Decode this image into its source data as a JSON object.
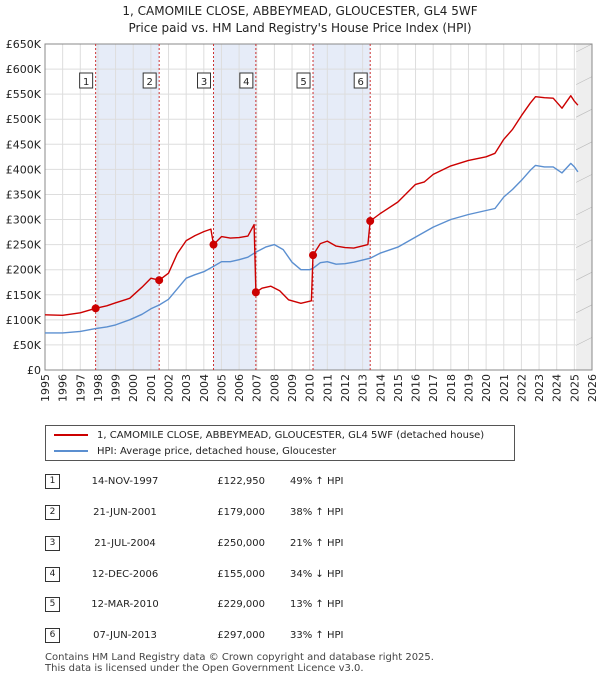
{
  "chart_data": {
    "type": "line",
    "title": "1, CAMOMILE CLOSE, ABBEYMEAD, GLOUCESTER, GL4 5WF",
    "subtitle": "Price paid vs. HM Land Registry's House Price Index (HPI)",
    "xlim": [
      1995,
      2026
    ],
    "ylim": [
      0,
      650000
    ],
    "x_ticks": [
      "1995",
      "1996",
      "1997",
      "1998",
      "1999",
      "2000",
      "2001",
      "2002",
      "2003",
      "2004",
      "2005",
      "2006",
      "2007",
      "2008",
      "2009",
      "2010",
      "2011",
      "2012",
      "2013",
      "2014",
      "2015",
      "2016",
      "2017",
      "2018",
      "2019",
      "2020",
      "2021",
      "2022",
      "2023",
      "2024",
      "2025",
      "2026"
    ],
    "y_ticks": [
      {
        "value": 0,
        "label": "£0"
      },
      {
        "value": 50000,
        "label": "£50K"
      },
      {
        "value": 100000,
        "label": "£100K"
      },
      {
        "value": 150000,
        "label": "£150K"
      },
      {
        "value": 200000,
        "label": "£200K"
      },
      {
        "value": 250000,
        "label": "£250K"
      },
      {
        "value": 300000,
        "label": "£300K"
      },
      {
        "value": 350000,
        "label": "£350K"
      },
      {
        "value": 400000,
        "label": "£400K"
      },
      {
        "value": 450000,
        "label": "£450K"
      },
      {
        "value": 500000,
        "label": "£500K"
      },
      {
        "value": 550000,
        "label": "£550K"
      },
      {
        "value": 600000,
        "label": "£600K"
      },
      {
        "value": 650000,
        "label": "£650K"
      }
    ],
    "grid": true,
    "future_from": 2025.1,
    "series": [
      {
        "name": "1, CAMOMILE CLOSE, ABBEYMEAD, GLOUCESTER, GL4 5WF (detached house)",
        "color": "#cc0000",
        "points": [
          [
            1995.0,
            110000
          ],
          [
            1996.0,
            109000
          ],
          [
            1997.0,
            114000
          ],
          [
            1997.87,
            122950
          ],
          [
            1998.5,
            128000
          ],
          [
            1999.0,
            134000
          ],
          [
            1999.8,
            143000
          ],
          [
            2000.5,
            165000
          ],
          [
            2001.0,
            183000
          ],
          [
            2001.47,
            179000
          ],
          [
            2002.0,
            193000
          ],
          [
            2002.5,
            232000
          ],
          [
            2003.0,
            258000
          ],
          [
            2003.5,
            268000
          ],
          [
            2004.0,
            276000
          ],
          [
            2004.4,
            281000
          ],
          [
            2004.55,
            250000
          ],
          [
            2005.0,
            266000
          ],
          [
            2005.5,
            263000
          ],
          [
            2006.0,
            264000
          ],
          [
            2006.5,
            267000
          ],
          [
            2006.85,
            290000
          ],
          [
            2006.95,
            155000
          ],
          [
            2007.3,
            163000
          ],
          [
            2007.8,
            167000
          ],
          [
            2008.3,
            158000
          ],
          [
            2008.8,
            140000
          ],
          [
            2009.5,
            133000
          ],
          [
            2010.1,
            138000
          ],
          [
            2010.19,
            229000
          ],
          [
            2010.6,
            252000
          ],
          [
            2011.0,
            257000
          ],
          [
            2011.5,
            247000
          ],
          [
            2012.0,
            244000
          ],
          [
            2012.5,
            243000
          ],
          [
            2013.3,
            250000
          ],
          [
            2013.43,
            297000
          ],
          [
            2014.0,
            312000
          ],
          [
            2015.0,
            335000
          ],
          [
            2016.0,
            370000
          ],
          [
            2016.5,
            375000
          ],
          [
            2017.0,
            390000
          ],
          [
            2018.0,
            407000
          ],
          [
            2019.0,
            418000
          ],
          [
            2020.0,
            425000
          ],
          [
            2020.5,
            432000
          ],
          [
            2021.0,
            460000
          ],
          [
            2021.5,
            480000
          ],
          [
            2022.0,
            507000
          ],
          [
            2022.5,
            532000
          ],
          [
            2022.8,
            545000
          ],
          [
            2023.3,
            543000
          ],
          [
            2023.8,
            542000
          ],
          [
            2024.3,
            522000
          ],
          [
            2024.8,
            547000
          ],
          [
            2025.0,
            536000
          ],
          [
            2025.2,
            528000
          ]
        ]
      },
      {
        "name": "HPI: Average price, detached house, Gloucester",
        "color": "#5b8fd0",
        "points": [
          [
            1995.0,
            74000
          ],
          [
            1996.0,
            74000
          ],
          [
            1997.0,
            77000
          ],
          [
            1997.87,
            82500
          ],
          [
            1998.5,
            86000
          ],
          [
            1999.0,
            90000
          ],
          [
            1999.8,
            100000
          ],
          [
            2000.5,
            111000
          ],
          [
            2001.0,
            122000
          ],
          [
            2001.47,
            129700
          ],
          [
            2002.0,
            141000
          ],
          [
            2002.5,
            162000
          ],
          [
            2003.0,
            183000
          ],
          [
            2003.5,
            190000
          ],
          [
            2004.0,
            196000
          ],
          [
            2004.55,
            206600
          ],
          [
            2005.0,
            216000
          ],
          [
            2005.5,
            216000
          ],
          [
            2006.0,
            220000
          ],
          [
            2006.5,
            225000
          ],
          [
            2006.95,
            235000
          ],
          [
            2007.5,
            245000
          ],
          [
            2008.0,
            250000
          ],
          [
            2008.5,
            240000
          ],
          [
            2009.0,
            215000
          ],
          [
            2009.5,
            200000
          ],
          [
            2010.0,
            200000
          ],
          [
            2010.19,
            202700
          ],
          [
            2010.6,
            214000
          ],
          [
            2011.0,
            216000
          ],
          [
            2011.5,
            211000
          ],
          [
            2012.0,
            212000
          ],
          [
            2012.5,
            215000
          ],
          [
            2013.43,
            223000
          ],
          [
            2014.0,
            233000
          ],
          [
            2015.0,
            245000
          ],
          [
            2016.0,
            265000
          ],
          [
            2017.0,
            285000
          ],
          [
            2018.0,
            300000
          ],
          [
            2019.0,
            310000
          ],
          [
            2020.0,
            318000
          ],
          [
            2020.5,
            322000
          ],
          [
            2021.0,
            345000
          ],
          [
            2021.5,
            360000
          ],
          [
            2022.0,
            378000
          ],
          [
            2022.5,
            398000
          ],
          [
            2022.8,
            408000
          ],
          [
            2023.3,
            405000
          ],
          [
            2023.8,
            405000
          ],
          [
            2024.3,
            393000
          ],
          [
            2024.8,
            412000
          ],
          [
            2025.0,
            405000
          ],
          [
            2025.2,
            395000
          ]
        ]
      }
    ],
    "sales": [
      {
        "num": "1",
        "x": 1997.87,
        "value": 122950,
        "date": "14-NOV-1997",
        "price": "£122,950",
        "hpi": "49% ↑ HPI"
      },
      {
        "num": "2",
        "x": 2001.47,
        "value": 179000,
        "date": "21-JUN-2001",
        "price": "£179,000",
        "hpi": "38% ↑ HPI"
      },
      {
        "num": "3",
        "x": 2004.55,
        "value": 250000,
        "date": "21-JUL-2004",
        "price": "£250,000",
        "hpi": "21% ↑ HPI"
      },
      {
        "num": "4",
        "x": 2006.95,
        "value": 155000,
        "date": "12-DEC-2006",
        "price": "£155,000",
        "hpi": "34% ↓ HPI"
      },
      {
        "num": "5",
        "x": 2010.19,
        "value": 229000,
        "date": "12-MAR-2010",
        "price": "£229,000",
        "hpi": "13% ↑ HPI"
      },
      {
        "num": "6",
        "x": 2013.43,
        "value": 297000,
        "date": "07-JUN-2013",
        "price": "£297,000",
        "hpi": "33% ↑ HPI"
      }
    ],
    "shaded_periods": [
      [
        1997.87,
        2001.47
      ],
      [
        2004.55,
        2006.95
      ],
      [
        2010.19,
        2013.43
      ]
    ]
  },
  "legend": {
    "property_label": "1, CAMOMILE CLOSE, ABBEYMEAD, GLOUCESTER, GL4 5WF (detached house)",
    "hpi_label": "HPI: Average price, detached house, Gloucester"
  },
  "footer": {
    "line1": "Contains HM Land Registry data © Crown copyright and database right 2025.",
    "line2": "This data is licensed under the Open Government Licence v3.0."
  },
  "colors": {
    "property": "#cc0000",
    "hpi": "#5b8fd0",
    "shade": "#e6ecf8",
    "grid": "#dddddd"
  }
}
